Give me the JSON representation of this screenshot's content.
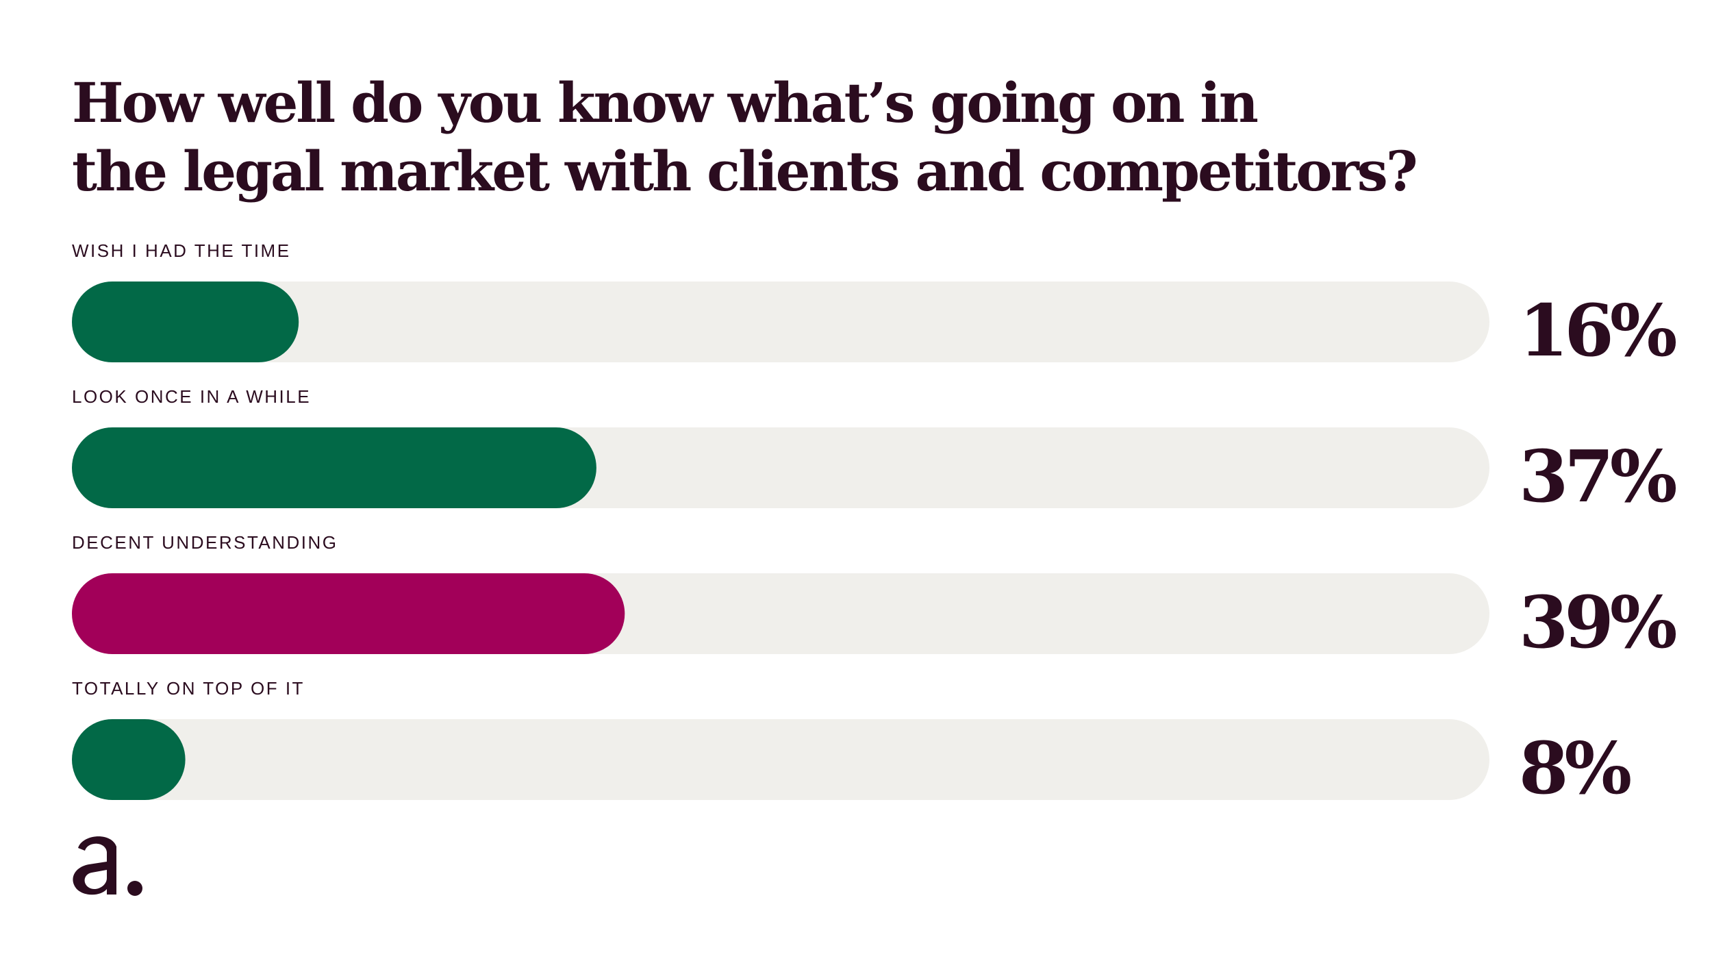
{
  "chart_data": {
    "type": "bar",
    "orientation": "horizontal",
    "title": "How well do you know what’s going on in the legal market with clients and competitors?",
    "title_lines": [
      "How well do you know what’s going on in",
      "the legal market with clients and competitors?"
    ],
    "categories": [
      "WISH I HAD THE TIME",
      "LOOK ONCE IN A WHILE",
      "DECENT UNDERSTANDING",
      "TOTALLY ON TOP OF IT"
    ],
    "values": [
      16,
      37,
      39,
      8
    ],
    "value_labels": [
      "16%",
      "37%",
      "39%",
      "8%"
    ],
    "xlim": [
      0,
      100
    ],
    "grid": false,
    "legend": "none",
    "bar_colors": [
      "#026947",
      "#026947",
      "#a20059",
      "#026947"
    ],
    "track_color": "#f0efeb"
  },
  "colors": {
    "text": "#2b0c1f",
    "green": "#026947",
    "magenta": "#a20059",
    "track": "#f0efeb"
  },
  "logo": {
    "icon": "letter-a-logo-icon"
  }
}
